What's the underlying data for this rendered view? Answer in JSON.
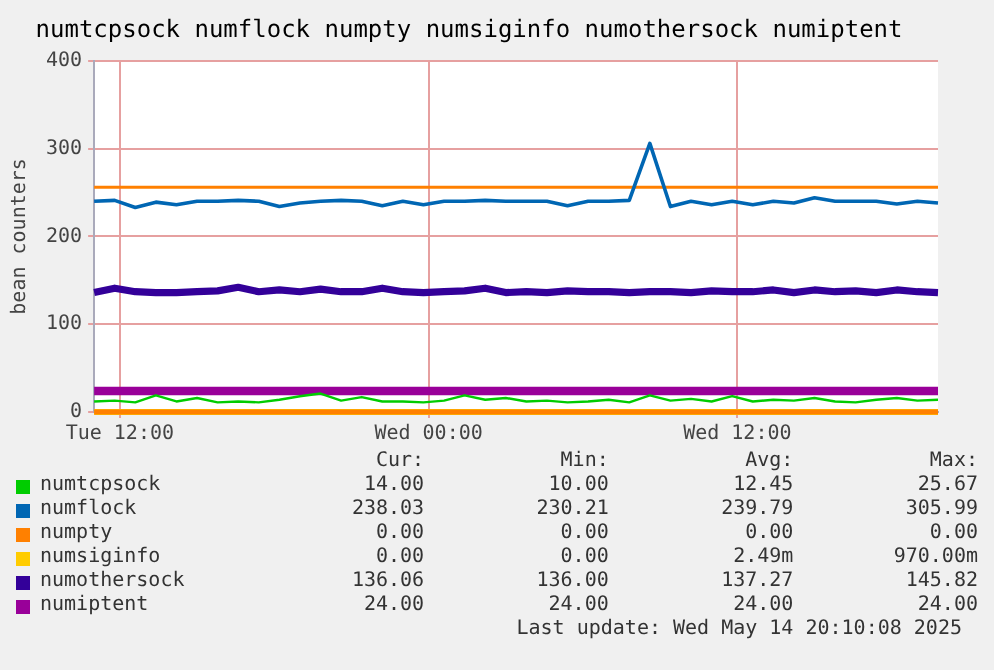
{
  "chart_data": {
    "type": "line",
    "title": "numtcpsock numflock numpty numsiginfo numothersock numiptent",
    "ylabel": "bean counters",
    "x": [
      "2025-05-13T11:00",
      "2025-05-13T11:48",
      "2025-05-13T12:36",
      "2025-05-13T13:24",
      "2025-05-13T14:12",
      "2025-05-13T15:00",
      "2025-05-13T15:48",
      "2025-05-13T16:36",
      "2025-05-13T17:24",
      "2025-05-13T18:12",
      "2025-05-13T19:00",
      "2025-05-13T19:48",
      "2025-05-13T20:36",
      "2025-05-13T21:24",
      "2025-05-13T22:12",
      "2025-05-13T23:00",
      "2025-05-13T23:48",
      "2025-05-14T00:36",
      "2025-05-14T01:24",
      "2025-05-14T02:12",
      "2025-05-14T03:00",
      "2025-05-14T03:48",
      "2025-05-14T04:36",
      "2025-05-14T05:24",
      "2025-05-14T06:12",
      "2025-05-14T07:00",
      "2025-05-14T07:48",
      "2025-05-14T08:36",
      "2025-05-14T09:24",
      "2025-05-14T10:12",
      "2025-05-14T11:00",
      "2025-05-14T11:48",
      "2025-05-14T12:36",
      "2025-05-14T13:24",
      "2025-05-14T14:12",
      "2025-05-14T15:00",
      "2025-05-14T15:48",
      "2025-05-14T16:36",
      "2025-05-14T17:24",
      "2025-05-14T18:12",
      "2025-05-14T19:00",
      "2025-05-14T19:48"
    ],
    "xlim": [
      "2025-05-13T11:00",
      "2025-05-14T19:48"
    ],
    "xticks": [
      {
        "value": "2025-05-13T12:00",
        "label": "Tue 12:00"
      },
      {
        "value": "2025-05-14T00:00",
        "label": "Wed 00:00"
      },
      {
        "value": "2025-05-14T12:00",
        "label": "Wed 12:00"
      }
    ],
    "ylim": [
      0,
      400
    ],
    "yticks": [
      0,
      100,
      200,
      300,
      400
    ],
    "grid": true,
    "legend": "bottom",
    "marker": "none",
    "line_style": "solid",
    "series": [
      {
        "name": "numtcpsock",
        "color": "#00cc00",
        "values": [
          12,
          13,
          11,
          19,
          12,
          16,
          11,
          12,
          11,
          14,
          18,
          21,
          13,
          17,
          12,
          12,
          11,
          13,
          19,
          14,
          16,
          12,
          13,
          11,
          12,
          14,
          11,
          19,
          13,
          15,
          12,
          18,
          12,
          14,
          13,
          16,
          12,
          11,
          14,
          16,
          13,
          14
        ]
      },
      {
        "name": "numflock",
        "color": "#0066b3",
        "values": [
          240,
          241,
          233,
          239,
          236,
          240,
          240,
          241,
          240,
          234,
          238,
          240,
          241,
          240,
          235,
          240,
          236,
          240,
          240,
          241,
          240,
          240,
          240,
          235,
          240,
          240,
          241,
          306,
          234,
          240,
          236,
          240,
          236,
          240,
          238,
          244,
          240,
          240,
          240,
          237,
          240,
          238
        ]
      },
      {
        "name": "numpty",
        "color": "#ff8000",
        "values": [
          0,
          0,
          0,
          0,
          0,
          0,
          0,
          0,
          0,
          0,
          0,
          0,
          0,
          0,
          0,
          0,
          0,
          0,
          0,
          0,
          0,
          0,
          0,
          0,
          0,
          0,
          0,
          0,
          0,
          0,
          0,
          0,
          0,
          0,
          0,
          0,
          0,
          0,
          0,
          0,
          0,
          0
        ]
      },
      {
        "name": "numsiginfo",
        "color": "#ffcc00",
        "values": [
          0,
          0,
          0,
          0,
          0,
          0,
          0,
          0,
          0,
          0,
          0,
          0,
          0,
          0,
          0,
          0,
          0,
          0,
          0,
          0,
          0,
          0,
          0,
          0,
          0,
          0,
          0,
          0,
          0,
          0,
          0,
          0,
          0,
          0,
          0,
          0,
          0,
          0,
          0,
          0,
          0,
          0
        ]
      },
      {
        "name": "numothersock",
        "color": "#330099",
        "values": [
          136,
          141,
          137,
          136,
          136,
          137,
          138,
          142,
          137,
          139,
          137,
          140,
          137,
          137,
          141,
          137,
          136,
          137,
          138,
          141,
          136,
          137,
          136,
          138,
          137,
          137,
          136,
          137,
          137,
          136,
          138,
          137,
          137,
          139,
          136,
          139,
          137,
          138,
          136,
          139,
          137,
          136
        ]
      },
      {
        "name": "numiptent",
        "color": "#990099",
        "values": [
          24,
          24,
          24,
          24,
          24,
          24,
          24,
          24,
          24,
          24,
          24,
          24,
          24,
          24,
          24,
          24,
          24,
          24,
          24,
          24,
          24,
          24,
          24,
          24,
          24,
          24,
          24,
          24,
          24,
          24,
          24,
          24,
          24,
          24,
          24,
          24,
          24,
          24,
          24,
          24,
          24,
          24
        ]
      }
    ],
    "ref_lines": [
      {
        "axis": "y",
        "value": 256,
        "color": "#ff8000"
      }
    ],
    "annotations": [
      "Cur:",
      "Min:",
      "Avg:",
      "Max:",
      "14.00",
      "10.00",
      "12.45",
      "25.67",
      "238.03",
      "230.21",
      "239.79",
      "305.99",
      "0.00",
      "0.00",
      "0.00",
      "0.00",
      "0.00",
      "0.00",
      "2.49m",
      "970.00m",
      "136.06",
      "136.00",
      "137.27",
      "145.82",
      "24.00",
      "24.00",
      "24.00",
      "24.00",
      "Last update: Wed May 14 20:10:08 2025"
    ]
  }
}
